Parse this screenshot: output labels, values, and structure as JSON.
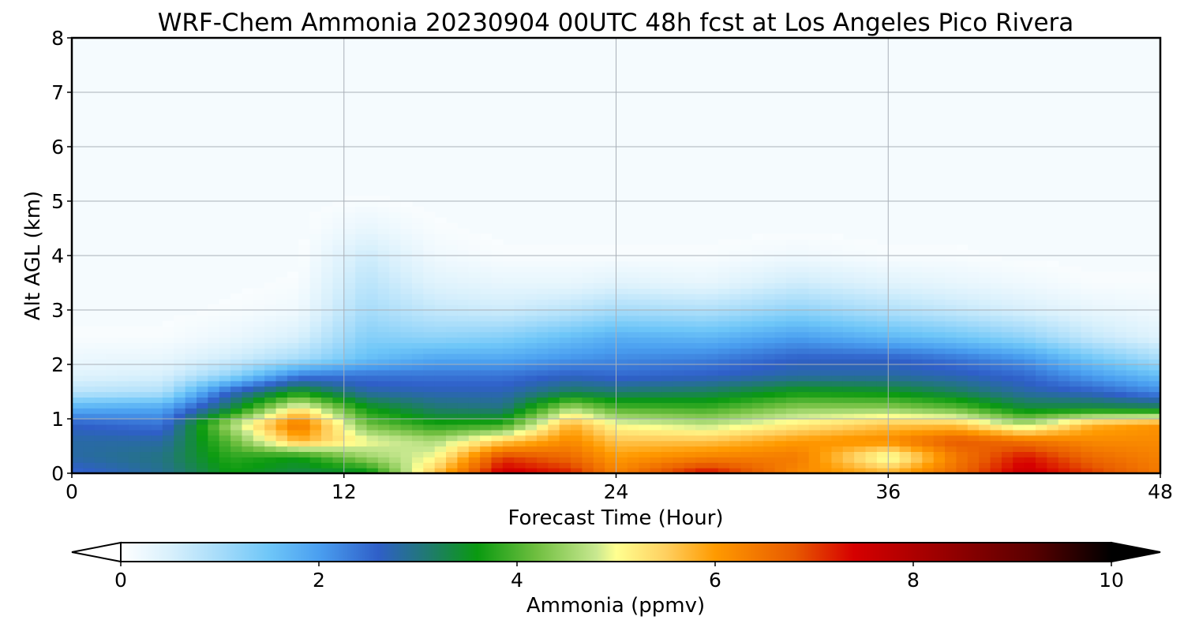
{
  "chart_data": {
    "type": "heatmap",
    "title": "WRF-Chem Ammonia  20230904 00UTC 48h fcst at Los Angeles Pico Rivera",
    "xlabel": "Forecast Time (Hour)",
    "ylabel": "Alt AGL (km)",
    "xlim": [
      0,
      48
    ],
    "ylim": [
      0,
      8
    ],
    "x_ticks": [
      "0",
      "12",
      "24",
      "36",
      "48"
    ],
    "y_ticks": [
      "0",
      "1",
      "2",
      "3",
      "4",
      "5",
      "6",
      "7",
      "8"
    ],
    "grid": true,
    "colorbar": {
      "label": "Ammonia  (ppmv)",
      "range": [
        0,
        10
      ],
      "ticks": [
        "0",
        "2",
        "4",
        "6",
        "8",
        "10"
      ],
      "orientation": "horizontal",
      "placement": "bottom",
      "extend": "both",
      "colors": [
        [
          0,
          "#ffffff"
        ],
        [
          0.5,
          "#d8f0fc"
        ],
        [
          1.0,
          "#a6dcfa"
        ],
        [
          1.5,
          "#6ec6f8"
        ],
        [
          2.0,
          "#4a9ff0"
        ],
        [
          2.6,
          "#2f5fc8"
        ],
        [
          3.1,
          "#207a70"
        ],
        [
          3.6,
          "#0a9a10"
        ],
        [
          4.2,
          "#70bf40"
        ],
        [
          4.8,
          "#c8e890"
        ],
        [
          5.0,
          "#ffff90"
        ],
        [
          5.5,
          "#ffd060"
        ],
        [
          6.0,
          "#ff9a00"
        ],
        [
          6.8,
          "#e85a00"
        ],
        [
          7.4,
          "#d60000"
        ],
        [
          8.2,
          "#a00000"
        ],
        [
          9.2,
          "#5a0000"
        ],
        [
          10.0,
          "#000000"
        ]
      ]
    },
    "heights_km": [
      0,
      0.3,
      0.6,
      0.9,
      1.2,
      1.5,
      1.8,
      2.1,
      2.5,
      3.0,
      3.5,
      4.0,
      4.5,
      5.0,
      6.0,
      8.0
    ],
    "columns": [
      {
        "t": 0,
        "v": [
          2.5,
          2.8,
          2.8,
          2.6,
          1.8,
          0.8,
          0.4,
          0.25,
          0.1,
          0.05,
          0.05,
          0.05,
          0.05,
          0.05,
          0.05,
          0.05
        ]
      },
      {
        "t": 4,
        "v": [
          2.9,
          3.0,
          2.8,
          2.4,
          1.9,
          0.9,
          0.5,
          0.3,
          0.1,
          0.05,
          0.05,
          0.05,
          0.05,
          0.05,
          0.05,
          0.05
        ]
      },
      {
        "t": 7,
        "v": [
          3.6,
          3.8,
          4.1,
          4.6,
          3.3,
          2.6,
          1.2,
          0.6,
          0.25,
          0.1,
          0.05,
          0.05,
          0.05,
          0.05,
          0.05,
          0.05
        ]
      },
      {
        "t": 10,
        "v": [
          3.3,
          3.6,
          5.8,
          6.5,
          5.2,
          3.6,
          2.3,
          1.0,
          0.5,
          0.2,
          0.1,
          0.05,
          0.05,
          0.05,
          0.05,
          0.05
        ]
      },
      {
        "t": 13,
        "v": [
          3.4,
          4.5,
          5.0,
          4.2,
          3.6,
          2.8,
          2.4,
          1.6,
          1.3,
          1.0,
          0.8,
          0.6,
          0.3,
          0.1,
          0.05,
          0.05
        ]
      },
      {
        "t": 16,
        "v": [
          5.6,
          5.0,
          4.6,
          3.7,
          3.1,
          2.7,
          2.4,
          1.9,
          1.2,
          0.7,
          0.4,
          0.2,
          0.1,
          0.05,
          0.05,
          0.05
        ]
      },
      {
        "t": 19,
        "v": [
          7.6,
          7.0,
          5.5,
          3.8,
          3.0,
          2.7,
          2.4,
          1.9,
          1.3,
          0.6,
          0.3,
          0.1,
          0.05,
          0.05,
          0.05,
          0.05
        ]
      },
      {
        "t": 22,
        "v": [
          7.2,
          6.6,
          6.2,
          5.8,
          4.6,
          3.2,
          2.6,
          2.1,
          1.6,
          0.8,
          0.3,
          0.1,
          0.05,
          0.05,
          0.05,
          0.05
        ]
      },
      {
        "t": 24,
        "v": [
          6.3,
          6.0,
          5.6,
          5.0,
          4.0,
          3.1,
          2.5,
          2.2,
          1.8,
          1.0,
          0.4,
          0.1,
          0.05,
          0.05,
          0.05,
          0.05
        ]
      },
      {
        "t": 28,
        "v": [
          7.4,
          6.3,
          5.6,
          4.7,
          3.9,
          3.2,
          2.6,
          2.3,
          1.7,
          0.9,
          0.3,
          0.1,
          0.05,
          0.05,
          0.05,
          0.05
        ]
      },
      {
        "t": 32,
        "v": [
          6.2,
          6.4,
          6.0,
          5.2,
          4.4,
          3.6,
          2.8,
          2.6,
          2.0,
          1.2,
          0.6,
          0.2,
          0.05,
          0.05,
          0.05,
          0.05
        ]
      },
      {
        "t": 36,
        "v": [
          5.8,
          4.8,
          6.2,
          5.6,
          4.4,
          3.5,
          2.8,
          2.6,
          1.7,
          0.9,
          0.4,
          0.1,
          0.05,
          0.05,
          0.05,
          0.05
        ]
      },
      {
        "t": 39,
        "v": [
          6.6,
          6.4,
          6.8,
          5.6,
          4.1,
          3.2,
          2.7,
          2.4,
          1.5,
          0.7,
          0.3,
          0.1,
          0.05,
          0.05,
          0.05,
          0.05
        ]
      },
      {
        "t": 42,
        "v": [
          7.6,
          7.3,
          6.5,
          4.6,
          3.4,
          2.8,
          2.5,
          2.1,
          1.2,
          0.5,
          0.2,
          0.05,
          0.05,
          0.05,
          0.05,
          0.05
        ]
      },
      {
        "t": 45,
        "v": [
          7.0,
          6.6,
          6.2,
          5.8,
          3.4,
          2.6,
          2.0,
          1.5,
          0.7,
          0.3,
          0.1,
          0.05,
          0.05,
          0.05,
          0.05,
          0.05
        ]
      },
      {
        "t": 48,
        "v": [
          6.4,
          6.3,
          6.2,
          6.1,
          3.3,
          2.2,
          1.6,
          1.0,
          0.4,
          0.2,
          0.1,
          0.05,
          0.05,
          0.05,
          0.05,
          0.05
        ]
      }
    ],
    "notes_visible": []
  }
}
